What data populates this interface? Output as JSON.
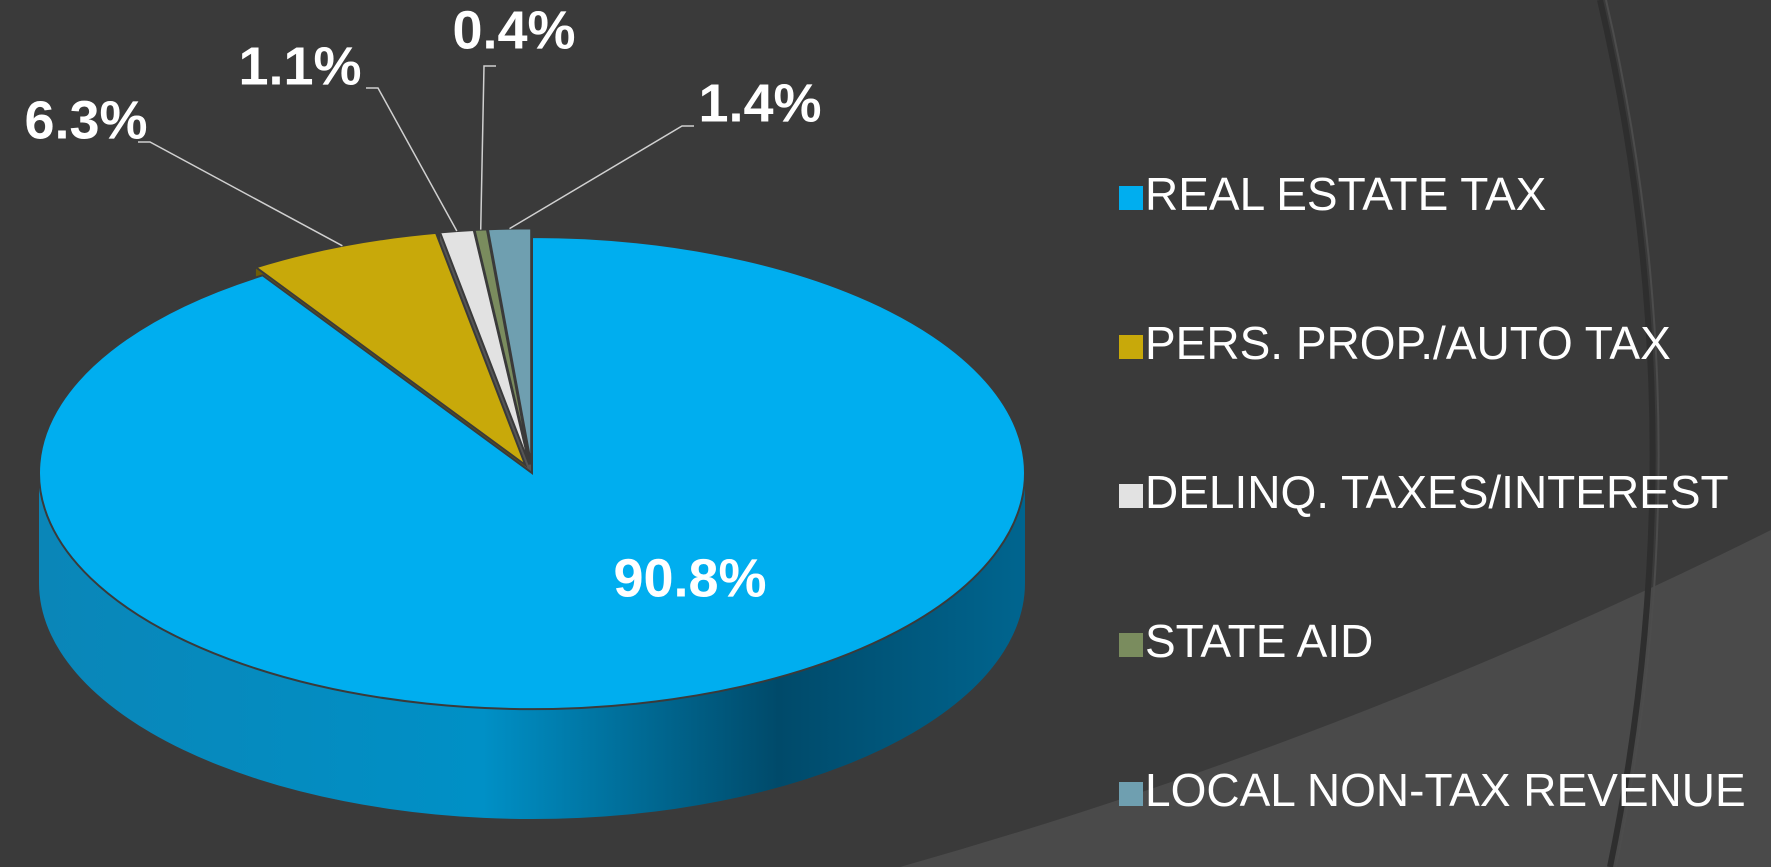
{
  "chart_data": {
    "type": "pie",
    "categories": [
      "REAL ESTATE TAX",
      "PERS. PROP./AUTO TAX",
      "DELINQ. TAXES/INTEREST",
      "STATE AID",
      "LOCAL NON-TAX REVENUE"
    ],
    "values": [
      90.8,
      6.3,
      1.1,
      0.4,
      1.4
    ],
    "value_labels": [
      "90.8%",
      "6.3%",
      "1.1%",
      "0.4%",
      "1.4%"
    ],
    "colors": [
      "#00aeef",
      "#c8a90a",
      "#e2e2e2",
      "#7a8c5e",
      "#6f9fb0"
    ],
    "legend": "right"
  }
}
